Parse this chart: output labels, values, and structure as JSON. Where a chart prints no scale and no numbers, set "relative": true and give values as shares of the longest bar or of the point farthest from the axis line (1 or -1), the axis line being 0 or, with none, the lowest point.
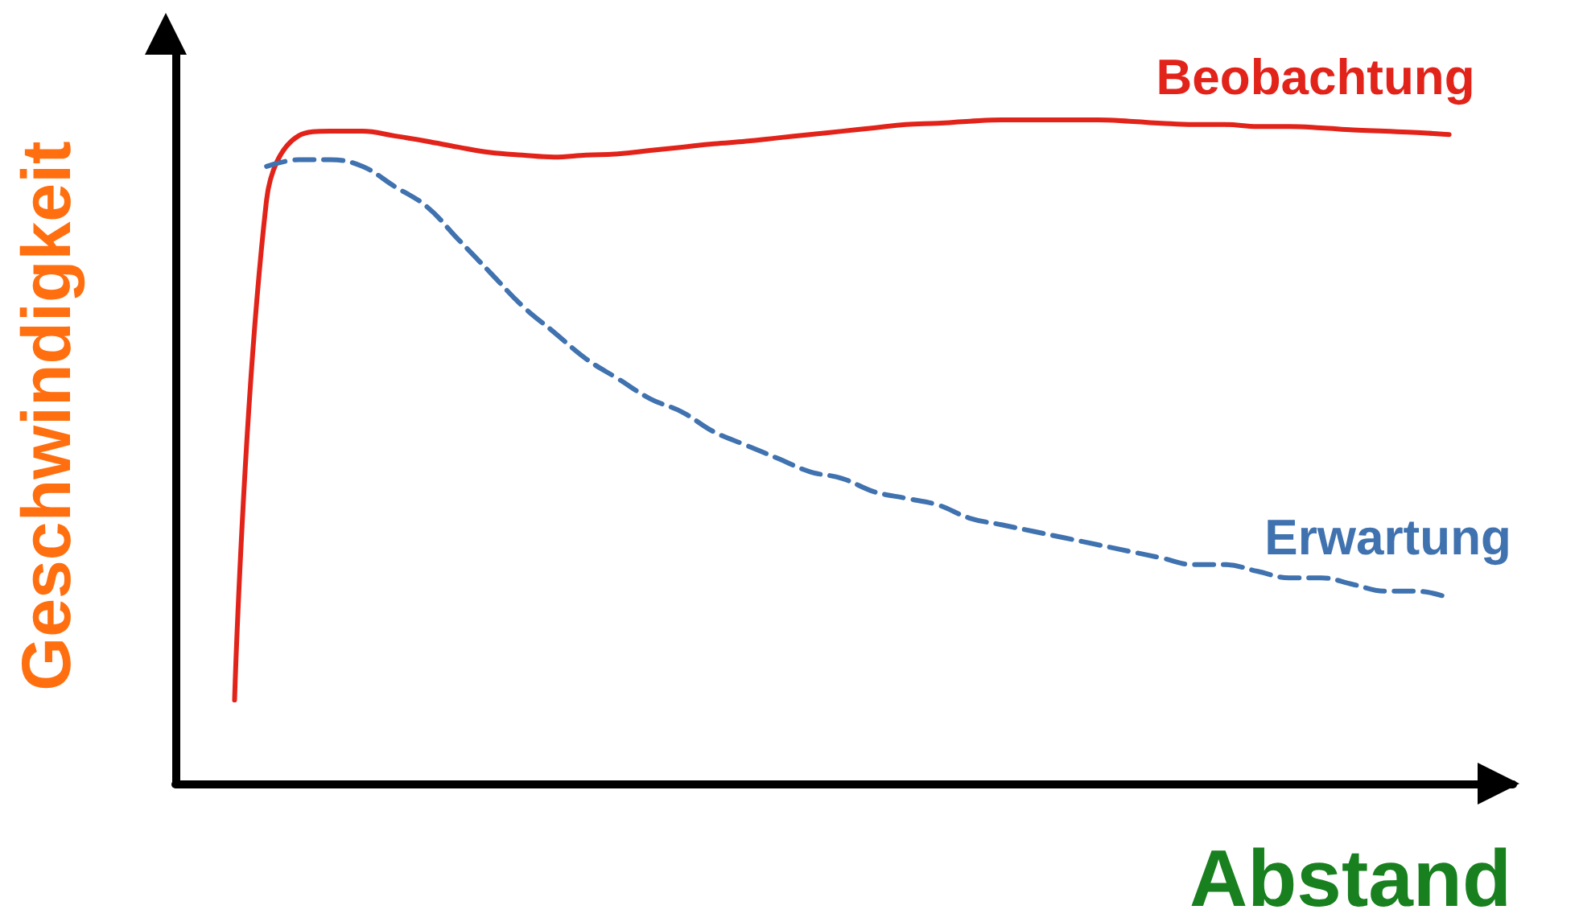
{
  "chart_data": {
    "type": "line",
    "relative": true,
    "xlabel": "Abstand",
    "ylabel": "Geschwindigkeit",
    "marker": "none",
    "grid": false,
    "legend": false,
    "categories": [
      null,
      null,
      null,
      null,
      null,
      null,
      null,
      null,
      null,
      null,
      null,
      null,
      null,
      null,
      null,
      null,
      null,
      null,
      null,
      null,
      null,
      null,
      null,
      null,
      null,
      null,
      null,
      null,
      null,
      null,
      null,
      null,
      null,
      null,
      null,
      null,
      null,
      null,
      null
    ],
    "series": [
      {
        "name": "Beobachtung",
        "color": "#e2231a",
        "line_style": "solid",
        "values": [
          0.126,
          0.879,
          0.976,
          0.983,
          0.983,
          0.976,
          0.968,
          0.959,
          0.951,
          0.947,
          0.944,
          0.947,
          0.949,
          0.954,
          0.959,
          0.964,
          0.968,
          0.973,
          0.978,
          0.983,
          0.988,
          0.993,
          0.995,
          0.998,
          1,
          1,
          1,
          1,
          0.998,
          0.995,
          0.993,
          0.993,
          0.99,
          0.99,
          0.988,
          0.985,
          0.983,
          0.981,
          0.978
        ]
      },
      {
        "name": "Erwartung",
        "color": "#3f72af",
        "line_style": "dashed",
        "values": [
          null,
          0.93,
          0.94,
          0.94,
          0.93,
          0.9,
          0.87,
          0.82,
          0.77,
          0.72,
          0.68,
          0.64,
          0.61,
          0.58,
          0.56,
          0.53,
          0.51,
          0.49,
          0.47,
          0.46,
          0.44,
          0.43,
          0.42,
          0.4,
          0.39,
          0.38,
          0.37,
          0.36,
          0.35,
          0.34,
          0.33,
          0.33,
          0.32,
          0.31,
          0.31,
          0.3,
          0.29,
          0.29,
          0.28
        ]
      }
    ]
  }
}
